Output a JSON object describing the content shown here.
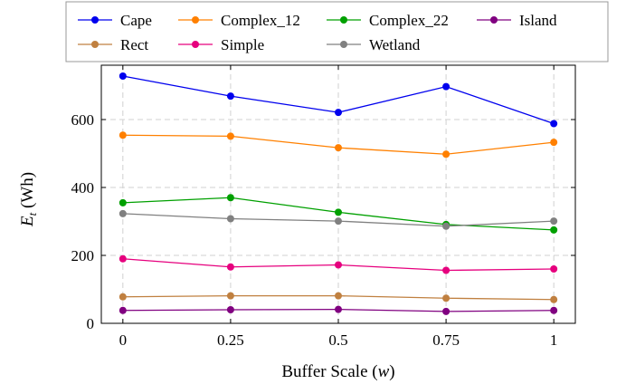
{
  "chart_data": {
    "type": "line",
    "xlabel": "Buffer Scale (",
    "xlabel_var": "w",
    "xlabel_close": ")",
    "ylabel_main": "E",
    "ylabel_sub": "t",
    "ylabel_unit": " (Wh)",
    "x": [
      0,
      0.25,
      0.5,
      0.75,
      1
    ],
    "x_tick_labels": [
      "0",
      "0.25",
      "0.5",
      "0.75",
      "1"
    ],
    "xlim": [
      -0.05,
      1.05
    ],
    "ylim": [
      0,
      760
    ],
    "y_ticks": [
      0,
      200,
      400,
      600
    ],
    "y_tick_labels": [
      "0",
      "200",
      "400",
      "600"
    ],
    "grid": true,
    "legend_position": "top",
    "series": [
      {
        "name": "Cape",
        "color": "#0000ee",
        "values": [
          728,
          669,
          621,
          697,
          588
        ]
      },
      {
        "name": "Complex_12",
        "color": "#ff8000",
        "values": [
          554,
          551,
          517,
          498,
          533
        ]
      },
      {
        "name": "Complex_22",
        "color": "#00a000",
        "values": [
          355,
          370,
          327,
          291,
          275
        ]
      },
      {
        "name": "Island",
        "color": "#800080",
        "values": [
          38,
          40,
          41,
          35,
          38
        ]
      },
      {
        "name": "Rect",
        "color": "#c08040",
        "values": [
          78,
          81,
          81,
          74,
          70
        ]
      },
      {
        "name": "Simple",
        "color": "#e6007e",
        "values": [
          190,
          166,
          172,
          156,
          160
        ]
      },
      {
        "name": "Wetland",
        "color": "#808080",
        "values": [
          323,
          308,
          301,
          286,
          301
        ]
      }
    ]
  }
}
